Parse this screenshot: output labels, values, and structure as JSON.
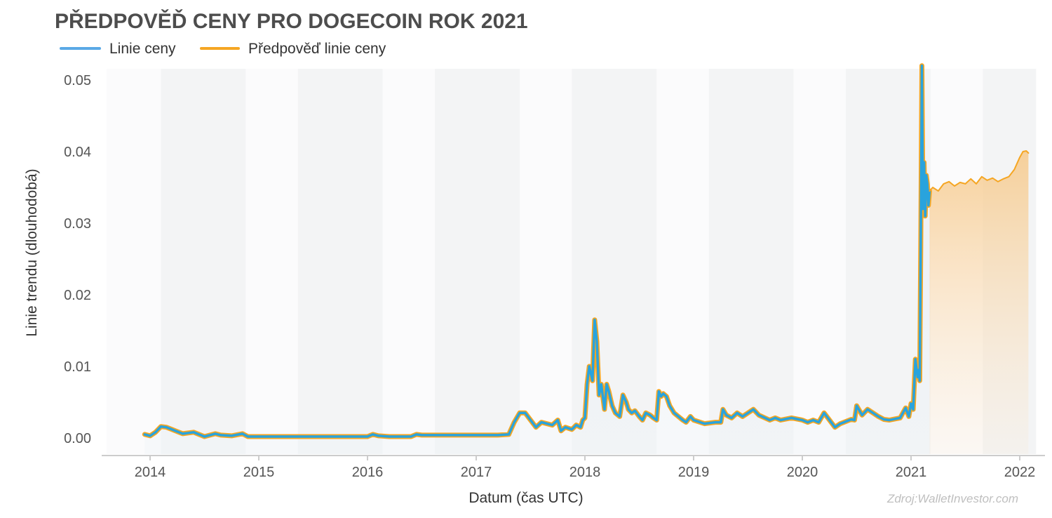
{
  "chart_data": {
    "type": "line",
    "title": "PŘEDPOVĚĎ CENY PRO DOGECOIN ROK 2021",
    "xlabel": "Datum (čas UTC)",
    "ylabel": "Linie trendu (dlouhodobá)",
    "source": "Zdroj:WalletInvestor.com",
    "ylim": [
      -0.002,
      0.052
    ],
    "xlim": [
      2013.6,
      2022.15
    ],
    "x_ticks": [
      "2014",
      "2015",
      "2016",
      "2017",
      "2018",
      "2019",
      "2020",
      "2021",
      "2022"
    ],
    "y_ticks": [
      "0.00",
      "0.01",
      "0.02",
      "0.03",
      "0.04",
      "0.05"
    ],
    "grid": "alternating shaded vertical bands",
    "legend_position": "top-left",
    "colors": {
      "price": "#29a3dd",
      "forecast": "#f5a623",
      "forecast_fill": "#f9cf94",
      "band": "#f5f6f7",
      "axis": "#cccccc"
    },
    "series": [
      {
        "name": "Linie ceny",
        "x": [
          2013.95,
          2014.0,
          2014.05,
          2014.1,
          2014.15,
          2014.2,
          2014.3,
          2014.4,
          2014.5,
          2014.6,
          2014.65,
          2014.75,
          2014.85,
          2014.9,
          2015.0,
          2015.5,
          2016.0,
          2016.05,
          2016.1,
          2016.2,
          2016.4,
          2016.45,
          2016.5,
          2017.0,
          2017.2,
          2017.3,
          2017.35,
          2017.4,
          2017.45,
          2017.5,
          2017.55,
          2017.6,
          2017.7,
          2017.75,
          2017.78,
          2017.82,
          2017.88,
          2017.92,
          2017.96,
          2017.98,
          2018.0,
          2018.02,
          2018.04,
          2018.07,
          2018.09,
          2018.11,
          2018.13,
          2018.15,
          2018.18,
          2018.2,
          2018.22,
          2018.25,
          2018.28,
          2018.32,
          2018.35,
          2018.38,
          2018.4,
          2018.43,
          2018.46,
          2018.5,
          2018.53,
          2018.56,
          2018.6,
          2018.63,
          2018.66,
          2018.68,
          2018.7,
          2018.72,
          2018.75,
          2018.78,
          2018.82,
          2018.86,
          2018.9,
          2018.93,
          2018.97,
          2019.0,
          2019.1,
          2019.2,
          2019.25,
          2019.27,
          2019.3,
          2019.35,
          2019.4,
          2019.45,
          2019.5,
          2019.55,
          2019.6,
          2019.7,
          2019.75,
          2019.8,
          2019.9,
          2020.0,
          2020.05,
          2020.1,
          2020.15,
          2020.2,
          2020.3,
          2020.35,
          2020.45,
          2020.48,
          2020.5,
          2020.55,
          2020.6,
          2020.65,
          2020.7,
          2020.75,
          2020.8,
          2020.9,
          2020.95,
          2020.98,
          2021.0,
          2021.02,
          2021.04,
          2021.06,
          2021.07,
          2021.08,
          2021.09,
          2021.1,
          2021.11,
          2021.12,
          2021.13,
          2021.14,
          2021.15,
          2021.16,
          2021.17
        ],
        "y": [
          0.0005,
          0.0003,
          0.0008,
          0.0016,
          0.0015,
          0.0012,
          0.0006,
          0.0008,
          0.0002,
          0.0006,
          0.0004,
          0.0003,
          0.0006,
          0.0002,
          0.0002,
          0.0002,
          0.0002,
          0.0005,
          0.0003,
          0.0002,
          0.0002,
          0.0005,
          0.0004,
          0.0004,
          0.0004,
          0.0005,
          0.0022,
          0.0035,
          0.0035,
          0.0025,
          0.0015,
          0.0022,
          0.0018,
          0.0025,
          0.001,
          0.0015,
          0.0012,
          0.0018,
          0.0015,
          0.0025,
          0.0028,
          0.0075,
          0.01,
          0.008,
          0.0165,
          0.0135,
          0.006,
          0.0075,
          0.004,
          0.0075,
          0.0065,
          0.0045,
          0.0035,
          0.003,
          0.006,
          0.005,
          0.004,
          0.0035,
          0.0038,
          0.003,
          0.0025,
          0.0035,
          0.0032,
          0.0028,
          0.0025,
          0.0065,
          0.0058,
          0.0062,
          0.0058,
          0.0045,
          0.0035,
          0.003,
          0.0025,
          0.0022,
          0.003,
          0.0025,
          0.002,
          0.0022,
          0.0022,
          0.004,
          0.0032,
          0.0028,
          0.0035,
          0.003,
          0.0035,
          0.004,
          0.0032,
          0.0025,
          0.0028,
          0.0025,
          0.0028,
          0.0025,
          0.0022,
          0.0025,
          0.0022,
          0.0035,
          0.0015,
          0.002,
          0.0026,
          0.0025,
          0.0045,
          0.0032,
          0.004,
          0.0035,
          0.003,
          0.0026,
          0.0025,
          0.0028,
          0.0042,
          0.003,
          0.0048,
          0.004,
          0.011,
          0.0085,
          0.0095,
          0.008,
          0.0275,
          0.052,
          0.032,
          0.0385,
          0.031,
          0.0367,
          0.0355,
          0.0325,
          0.0345
        ]
      },
      {
        "name": "Předpověď linie ceny",
        "x": [
          2021.17,
          2021.2,
          2021.25,
          2021.3,
          2021.35,
          2021.4,
          2021.45,
          2021.5,
          2021.55,
          2021.6,
          2021.65,
          2021.7,
          2021.75,
          2021.8,
          2021.85,
          2021.9,
          2021.95,
          2022.0,
          2022.03,
          2022.06,
          2022.08
        ],
        "y": [
          0.0345,
          0.035,
          0.0345,
          0.0355,
          0.0358,
          0.0352,
          0.0357,
          0.0355,
          0.0362,
          0.0355,
          0.0365,
          0.036,
          0.0363,
          0.0358,
          0.0362,
          0.0365,
          0.0375,
          0.0392,
          0.04,
          0.0401,
          0.0398
        ]
      }
    ]
  }
}
